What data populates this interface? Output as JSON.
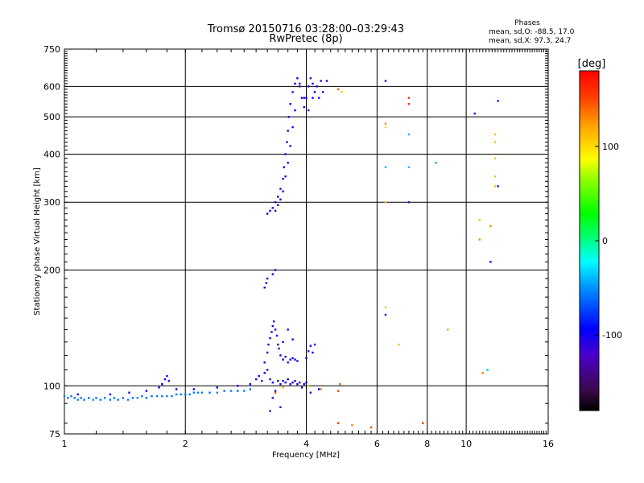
{
  "chart_data": {
    "type": "scatter",
    "title": "Tromsø 20150716 03:28:00–03:29:43",
    "subtitle": "RwPretec (8p)",
    "xlabel": "Frequency [MHz]",
    "ylabel": "Stationary phase Virtual Height [km]",
    "x_scale": "log",
    "y_scale": "log",
    "xlim": [
      1,
      16
    ],
    "ylim": [
      75,
      750
    ],
    "x_ticks": [
      1,
      2,
      4,
      6,
      8,
      10,
      16
    ],
    "x_tick_labels": [
      "1",
      "2",
      "4",
      "6",
      "8",
      "10",
      "16"
    ],
    "y_ticks": [
      75,
      100,
      200,
      300,
      400,
      500,
      600,
      750
    ],
    "y_tick_labels": [
      "75",
      "100",
      "200",
      "300",
      "400",
      "500",
      "600",
      "750"
    ],
    "grid": true,
    "stats": {
      "header": "Phases",
      "line_o": "mean, sd,O: -88.5, 17.0",
      "line_x": "mean, sd,X:  97.3, 24.7"
    },
    "colorbar": {
      "label": "[deg]",
      "min": -180,
      "max": 180,
      "ticks": [
        100,
        0,
        -100
      ],
      "tick_labels": [
        "100",
        "0",
        "-100"
      ]
    },
    "points": [
      [
        1.0,
        94,
        -55
      ],
      [
        1.02,
        93,
        -60
      ],
      [
        1.04,
        94,
        -58
      ],
      [
        1.06,
        93,
        -62
      ],
      [
        1.08,
        92,
        -55
      ],
      [
        1.1,
        93,
        -60
      ],
      [
        1.12,
        92,
        -58
      ],
      [
        1.15,
        93,
        -62
      ],
      [
        1.18,
        92,
        -55
      ],
      [
        1.2,
        93,
        -60
      ],
      [
        1.23,
        92,
        -62
      ],
      [
        1.26,
        93,
        -58
      ],
      [
        1.3,
        92,
        -60
      ],
      [
        1.33,
        93,
        -55
      ],
      [
        1.36,
        92,
        -62
      ],
      [
        1.4,
        93,
        -60
      ],
      [
        1.44,
        92,
        -58
      ],
      [
        1.48,
        93,
        -62
      ],
      [
        1.52,
        93,
        -55
      ],
      [
        1.56,
        94,
        -60
      ],
      [
        1.6,
        93,
        -58
      ],
      [
        1.65,
        94,
        -62
      ],
      [
        1.7,
        94,
        -55
      ],
      [
        1.75,
        94,
        -60
      ],
      [
        1.8,
        94,
        -58
      ],
      [
        1.85,
        94,
        -62
      ],
      [
        1.9,
        95,
        -55
      ],
      [
        1.95,
        95,
        -60
      ],
      [
        2.0,
        95,
        -58
      ],
      [
        2.05,
        95,
        -62
      ],
      [
        2.1,
        96,
        -55
      ],
      [
        2.15,
        96,
        -60
      ],
      [
        2.2,
        96,
        -58
      ],
      [
        2.3,
        96,
        -62
      ],
      [
        2.4,
        96,
        -55
      ],
      [
        2.5,
        97,
        -60
      ],
      [
        2.6,
        97,
        -58
      ],
      [
        2.7,
        97,
        -62
      ],
      [
        2.8,
        97,
        -55
      ],
      [
        2.9,
        98,
        -60
      ],
      [
        1.08,
        95,
        -100
      ],
      [
        1.3,
        95,
        -100
      ],
      [
        1.45,
        96,
        -100
      ],
      [
        1.6,
        97,
        -95
      ],
      [
        1.75,
        101,
        -100
      ],
      [
        1.78,
        104,
        -100
      ],
      [
        1.8,
        106,
        -100
      ],
      [
        1.82,
        103,
        -95
      ],
      [
        1.72,
        99,
        -100
      ],
      [
        1.9,
        98,
        -100
      ],
      [
        2.1,
        98,
        -100
      ],
      [
        2.4,
        99,
        -95
      ],
      [
        2.7,
        100,
        -100
      ],
      [
        2.9,
        101,
        -100
      ],
      [
        3.0,
        104,
        -100
      ],
      [
        3.05,
        106,
        -100
      ],
      [
        3.1,
        103,
        -95
      ],
      [
        3.15,
        108,
        -100
      ],
      [
        3.2,
        110,
        -100
      ],
      [
        3.25,
        104,
        -110
      ],
      [
        3.3,
        102,
        -100
      ],
      [
        3.35,
        97,
        -95
      ],
      [
        3.4,
        103,
        -100
      ],
      [
        3.45,
        101,
        -110
      ],
      [
        3.5,
        103,
        -100
      ],
      [
        3.55,
        102,
        -95
      ],
      [
        3.6,
        104,
        -100
      ],
      [
        3.65,
        101,
        -110
      ],
      [
        3.7,
        102,
        -100
      ],
      [
        3.75,
        103,
        -95
      ],
      [
        3.8,
        101,
        -100
      ],
      [
        3.85,
        102,
        -110
      ],
      [
        3.9,
        99,
        -100
      ],
      [
        3.95,
        101,
        -95
      ],
      [
        4.0,
        102,
        -100
      ],
      [
        4.1,
        96,
        -110
      ],
      [
        4.3,
        98,
        -100
      ],
      [
        3.25,
        86,
        -120
      ],
      [
        3.3,
        93,
        -110
      ],
      [
        3.45,
        88,
        -120
      ],
      [
        3.35,
        96,
        150
      ],
      [
        3.5,
        99,
        120
      ],
      [
        4.35,
        98,
        130
      ],
      [
        4.8,
        97,
        150
      ],
      [
        4.85,
        101,
        140
      ],
      [
        4.05,
        100,
        110
      ],
      [
        3.15,
        115,
        -100
      ],
      [
        3.2,
        122,
        -100
      ],
      [
        3.22,
        128,
        -110
      ],
      [
        3.25,
        133,
        -100
      ],
      [
        3.28,
        138,
        -95
      ],
      [
        3.3,
        143,
        -100
      ],
      [
        3.32,
        147,
        -110
      ],
      [
        3.35,
        140,
        -100
      ],
      [
        3.38,
        135,
        -95
      ],
      [
        3.4,
        128,
        -100
      ],
      [
        3.42,
        125,
        -110
      ],
      [
        3.45,
        120,
        -100
      ],
      [
        3.5,
        117,
        -95
      ],
      [
        3.55,
        119,
        -100
      ],
      [
        3.6,
        115,
        -110
      ],
      [
        3.65,
        117,
        -100
      ],
      [
        3.7,
        118,
        -95
      ],
      [
        3.75,
        117,
        -100
      ],
      [
        3.8,
        116,
        -110
      ],
      [
        3.5,
        130,
        -100
      ],
      [
        3.6,
        140,
        -100
      ],
      [
        3.7,
        132,
        -95
      ],
      [
        4.0,
        118,
        -100
      ],
      [
        4.05,
        123,
        -110
      ],
      [
        4.1,
        127,
        -100
      ],
      [
        4.15,
        122,
        -95
      ],
      [
        4.2,
        128,
        -100
      ],
      [
        3.15,
        180,
        -100
      ],
      [
        3.18,
        185,
        -110
      ],
      [
        3.2,
        190,
        -100
      ],
      [
        3.3,
        195,
        -100
      ],
      [
        3.35,
        200,
        -95
      ],
      [
        3.2,
        280,
        -100
      ],
      [
        3.25,
        285,
        -110
      ],
      [
        3.3,
        290,
        -100
      ],
      [
        3.35,
        300,
        -95
      ],
      [
        3.4,
        310,
        -100
      ],
      [
        3.45,
        325,
        -110
      ],
      [
        3.5,
        345,
        -100
      ],
      [
        3.52,
        370,
        -95
      ],
      [
        3.55,
        400,
        -100
      ],
      [
        3.58,
        430,
        -110
      ],
      [
        3.6,
        460,
        -100
      ],
      [
        3.62,
        500,
        -95
      ],
      [
        3.65,
        540,
        -100
      ],
      [
        3.7,
        580,
        -110
      ],
      [
        3.75,
        610,
        -100
      ],
      [
        3.8,
        630,
        -95
      ],
      [
        3.85,
        600,
        -100
      ],
      [
        3.9,
        560,
        -110
      ],
      [
        3.95,
        530,
        -100
      ],
      [
        4.0,
        560,
        -95
      ],
      [
        4.05,
        600,
        -100
      ],
      [
        4.1,
        630,
        -110
      ],
      [
        4.15,
        610,
        -100
      ],
      [
        4.2,
        580,
        -95
      ],
      [
        4.3,
        560,
        -100
      ],
      [
        4.4,
        580,
        -110
      ],
      [
        4.5,
        620,
        -100
      ],
      [
        3.35,
        285,
        -100
      ],
      [
        3.4,
        295,
        -100
      ],
      [
        3.45,
        305,
        -110
      ],
      [
        3.5,
        320,
        -100
      ],
      [
        3.55,
        350,
        -95
      ],
      [
        3.6,
        380,
        -100
      ],
      [
        3.65,
        420,
        -110
      ],
      [
        3.7,
        470,
        -100
      ],
      [
        3.75,
        520,
        -95
      ],
      [
        3.85,
        610,
        -100
      ],
      [
        3.95,
        560,
        -110
      ],
      [
        4.05,
        520,
        -100
      ],
      [
        4.15,
        560,
        -95
      ],
      [
        4.25,
        600,
        -100
      ],
      [
        4.35,
        620,
        -110
      ],
      [
        4.9,
        580,
        110
      ],
      [
        4.8,
        590,
        140
      ],
      [
        6.3,
        620,
        -110
      ],
      [
        7.2,
        560,
        160
      ],
      [
        7.2,
        540,
        160
      ],
      [
        6.3,
        480,
        130
      ],
      [
        6.3,
        470,
        100
      ],
      [
        7.2,
        450,
        -40
      ],
      [
        6.3,
        370,
        -40
      ],
      [
        7.2,
        370,
        -40
      ],
      [
        8.4,
        380,
        -40
      ],
      [
        6.3,
        300,
        110
      ],
      [
        7.2,
        300,
        -110
      ],
      [
        10.5,
        510,
        -110
      ],
      [
        12.0,
        550,
        -120
      ],
      [
        11.8,
        450,
        110
      ],
      [
        11.8,
        430,
        110
      ],
      [
        11.8,
        390,
        110
      ],
      [
        11.8,
        350,
        110
      ],
      [
        11.8,
        330,
        110
      ],
      [
        12.0,
        330,
        -120
      ],
      [
        10.8,
        270,
        110
      ],
      [
        10.8,
        240,
        130
      ],
      [
        11.5,
        260,
        130
      ],
      [
        11.5,
        210,
        -110
      ],
      [
        6.3,
        160,
        110
      ],
      [
        6.3,
        153,
        -100
      ],
      [
        9.0,
        140,
        120
      ],
      [
        6.8,
        128,
        110
      ],
      [
        11.0,
        108,
        130
      ],
      [
        11.3,
        110,
        -40
      ],
      [
        7.8,
        80,
        160
      ],
      [
        5.2,
        79,
        130
      ],
      [
        5.8,
        78,
        150
      ],
      [
        4.8,
        80,
        160
      ]
    ]
  }
}
